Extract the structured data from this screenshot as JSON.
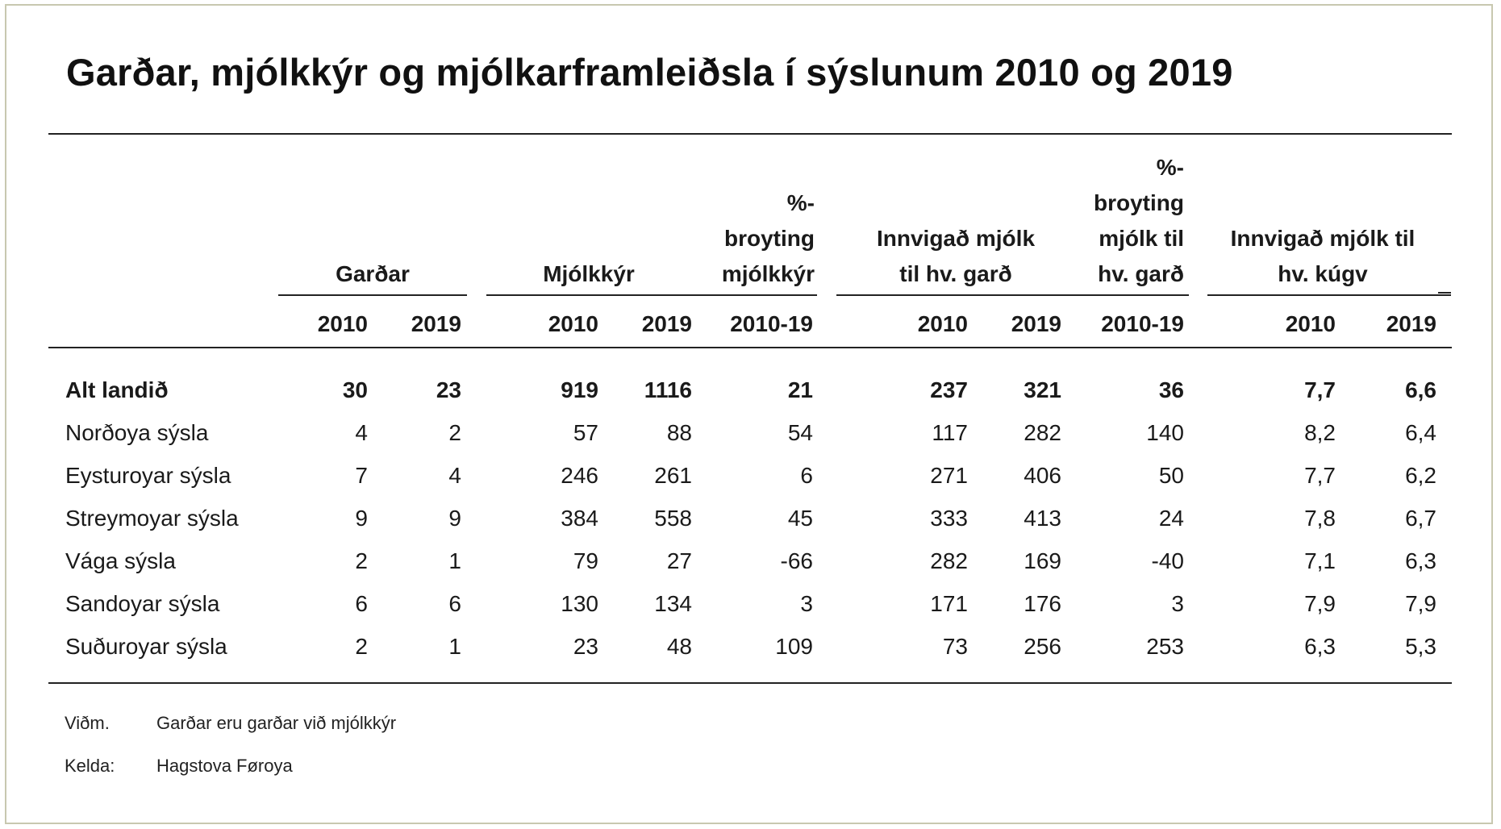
{
  "title": "Garðar, mjólkkýr og mjólkarframleiðsla í sýslunum 2010 og 2019",
  "headers": {
    "gardar": "Garðar",
    "mjolkkyr": "Mjólkkýr",
    "broyting_mjolkkyr": [
      "%-",
      "broyting",
      "mjólkkýr"
    ],
    "innvigad_gard": [
      "Innvigað mjólk",
      "til hv. garð"
    ],
    "broyting_gard": [
      "%-",
      "broyting",
      "mjólk til",
      "hv. garð"
    ],
    "innvigad_kugv": [
      "Innvigað mjólk til",
      "hv. kúgv"
    ]
  },
  "years": [
    "2010",
    "2019",
    "2010",
    "2019",
    "2010-19",
    "2010",
    "2019",
    "2010-19",
    "2010",
    "2019"
  ],
  "rows": [
    {
      "label": "Alt landið",
      "bold": true,
      "values": [
        "30",
        "23",
        "919",
        "1116",
        "21",
        "237",
        "321",
        "36",
        "7,7",
        "6,6"
      ]
    },
    {
      "label": "Norðoya sýsla",
      "bold": false,
      "values": [
        "4",
        "2",
        "57",
        "88",
        "54",
        "117",
        "282",
        "140",
        "8,2",
        "6,4"
      ]
    },
    {
      "label": "Eysturoyar sýsla",
      "bold": false,
      "values": [
        "7",
        "4",
        "246",
        "261",
        "6",
        "271",
        "406",
        "50",
        "7,7",
        "6,2"
      ]
    },
    {
      "label": "Streymoyar sýsla",
      "bold": false,
      "values": [
        "9",
        "9",
        "384",
        "558",
        "45",
        "333",
        "413",
        "24",
        "7,8",
        "6,7"
      ]
    },
    {
      "label": "Vága sýsla",
      "bold": false,
      "values": [
        "2",
        "1",
        "79",
        "27",
        "-66",
        "282",
        "169",
        "-40",
        "7,1",
        "6,3"
      ]
    },
    {
      "label": "Sandoyar sýsla",
      "bold": false,
      "values": [
        "6",
        "6",
        "130",
        "134",
        "3",
        "171",
        "176",
        "3",
        "7,9",
        "7,9"
      ]
    },
    {
      "label": "Suðuroyar sýsla",
      "bold": false,
      "values": [
        "2",
        "1",
        "23",
        "48",
        "109",
        "73",
        "256",
        "253",
        "6,3",
        "5,3"
      ]
    }
  ],
  "notes": {
    "note_label": "Viðm.",
    "note_text": "Garðar eru garðar við mjólkkýr",
    "source_label": "Kelda:",
    "source_text": "Hagstova Føroya"
  }
}
